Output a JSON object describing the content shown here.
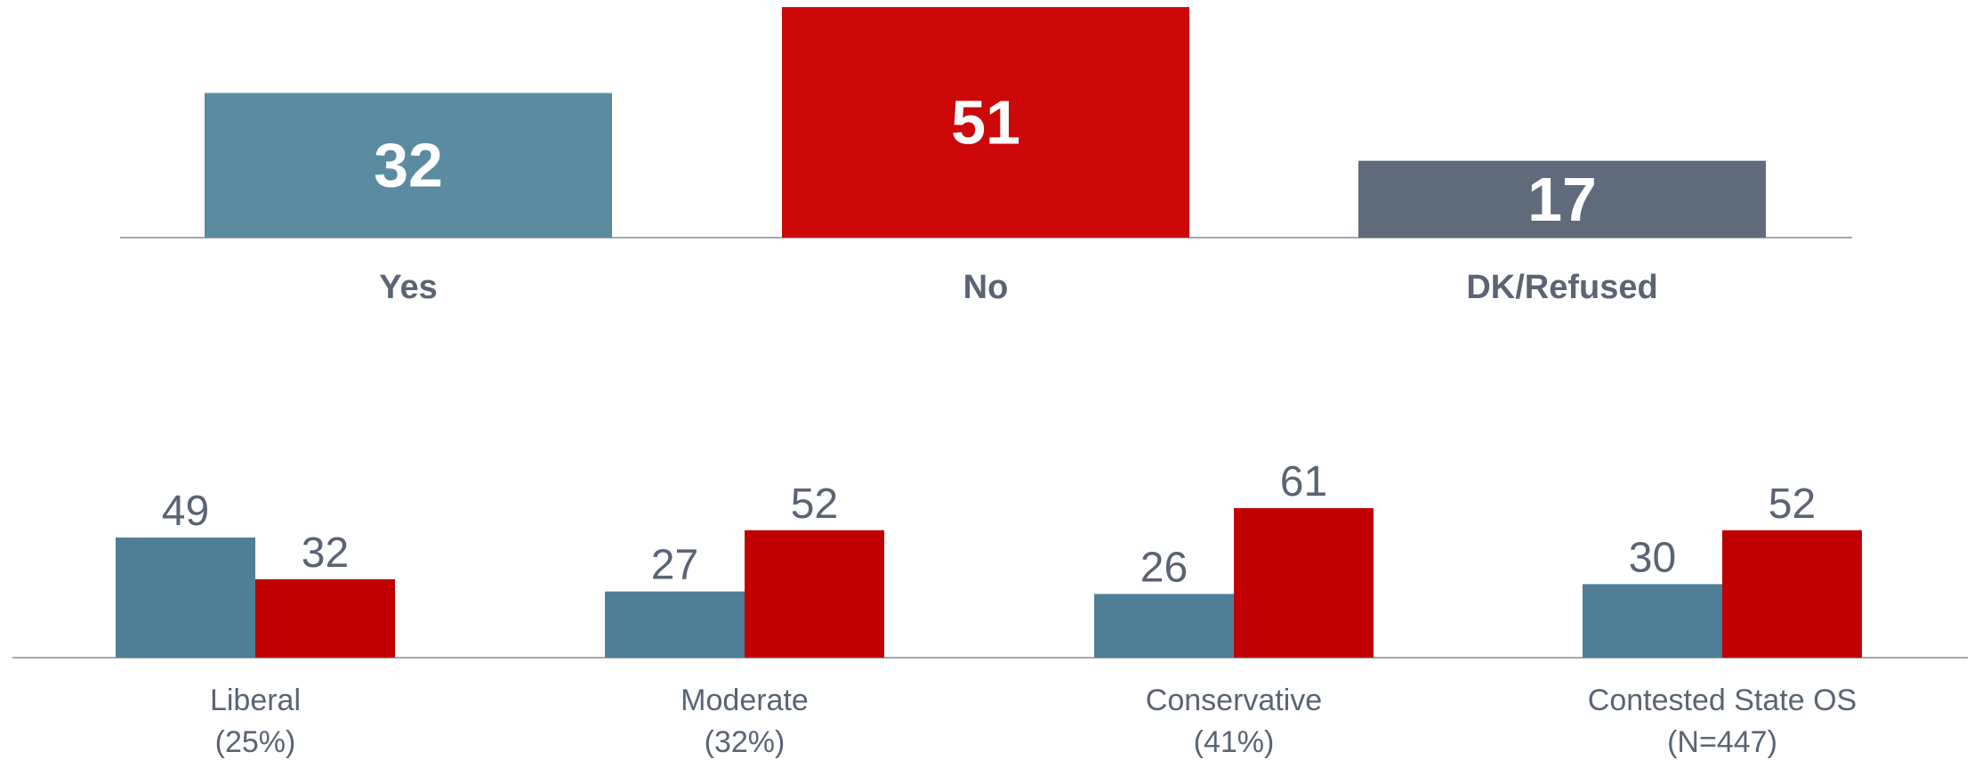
{
  "chart_data": [
    {
      "type": "bar",
      "categories": [
        "Yes",
        "No",
        "DK/Refused"
      ],
      "values": [
        32,
        51,
        17
      ],
      "colors": [
        "#5a8ba0",
        "#cc0808",
        "#5f6b7a"
      ],
      "title": "",
      "xlabel": "",
      "ylabel": "",
      "ylim": [
        0,
        51
      ],
      "grid": false,
      "legend": "none"
    },
    {
      "type": "bar",
      "categories": [
        {
          "name": "Liberal",
          "sub": "(25%)"
        },
        {
          "name": "Moderate",
          "sub": "(32%)"
        },
        {
          "name": "Conservative",
          "sub": "(41%)"
        },
        {
          "name": "Contested State OS",
          "sub": "(N=447)"
        }
      ],
      "series": [
        {
          "values": [
            49,
            27,
            26,
            30
          ],
          "color": "#4f7f96"
        },
        {
          "values": [
            32,
            52,
            61,
            52
          ],
          "color": "#c00000"
        }
      ],
      "title": "",
      "xlabel": "",
      "ylabel": "",
      "ylim": [
        0,
        61
      ],
      "grid": false,
      "legend": "none"
    }
  ]
}
